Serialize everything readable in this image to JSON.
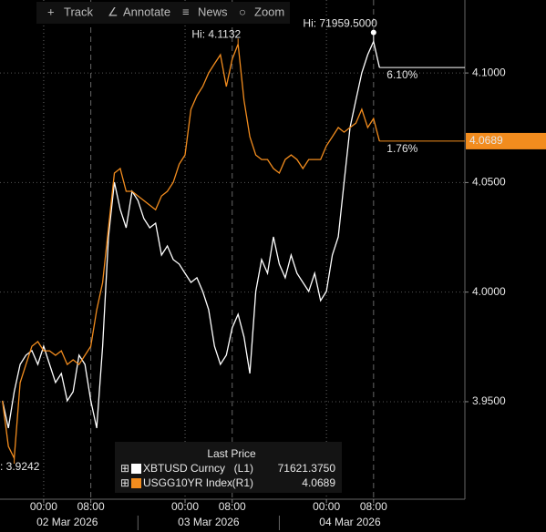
{
  "toolbar": [
    "Track",
    "Annotate",
    "News",
    "Zoom"
  ],
  "chart_data": {
    "type": "line",
    "x": [
      "2026-03-01T17:00",
      "2026-03-01T18:00",
      "2026-03-01T19:00",
      "2026-03-01T20:00",
      "2026-03-01T21:00",
      "2026-03-01T22:00",
      "2026-03-01T23:00",
      "2026-03-02T00:00",
      "2026-03-02T01:00",
      "2026-03-02T02:00",
      "2026-03-02T03:00",
      "2026-03-02T04:00",
      "2026-03-02T05:00",
      "2026-03-02T06:00",
      "2026-03-02T07:00",
      "2026-03-02T08:00",
      "2026-03-02T09:00",
      "2026-03-02T10:00",
      "2026-03-02T11:00",
      "2026-03-02T12:00",
      "2026-03-02T13:00",
      "2026-03-02T14:00",
      "2026-03-02T15:00",
      "2026-03-02T16:00",
      "2026-03-02T17:00",
      "2026-03-02T18:00",
      "2026-03-02T19:00",
      "2026-03-02T20:00",
      "2026-03-02T21:00",
      "2026-03-02T22:00",
      "2026-03-02T23:00",
      "2026-03-03T00:00",
      "2026-03-03T01:00",
      "2026-03-03T02:00",
      "2026-03-03T03:00",
      "2026-03-03T04:00",
      "2026-03-03T05:00",
      "2026-03-03T06:00",
      "2026-03-03T07:00",
      "2026-03-03T08:00",
      "2026-03-03T09:00",
      "2026-03-03T10:00",
      "2026-03-03T11:00",
      "2026-03-03T12:00",
      "2026-03-03T13:00",
      "2026-03-03T14:00",
      "2026-03-03T15:00",
      "2026-03-03T16:00",
      "2026-03-03T17:00",
      "2026-03-03T18:00",
      "2026-03-03T19:00",
      "2026-03-03T20:00",
      "2026-03-03T21:00",
      "2026-03-03T22:00",
      "2026-03-03T23:00",
      "2026-03-04T00:00",
      "2026-03-04T01:00",
      "2026-03-04T02:00",
      "2026-03-04T03:00",
      "2026-03-04T04:00",
      "2026-03-04T05:00",
      "2026-03-04T06:00",
      "2026-03-04T07:00",
      "2026-03-04T08:00",
      "2026-03-04T09:00"
    ],
    "xlim": [
      "2026-03-01T16:35",
      "2026-03-04T23:30"
    ],
    "xticks": [
      {
        "value": "2026-03-02T00:00",
        "label": "00:00"
      },
      {
        "value": "2026-03-02T08:00",
        "label": "08:00"
      },
      {
        "value": "2026-03-03T00:00",
        "label": "00:00"
      },
      {
        "value": "2026-03-03T08:00",
        "label": "08:00"
      },
      {
        "value": "2026-03-04T00:00",
        "label": "00:00"
      },
      {
        "value": "2026-03-04T08:00",
        "label": "08:00"
      }
    ],
    "date_labels": [
      "02 Mar 2026",
      "03 Mar 2026",
      "04 Mar 2026"
    ],
    "ylim": [
      66000,
      72500
    ],
    "y2lim": [
      3.9055,
      4.1333
    ],
    "y2ticks": [
      {
        "value": 3.95,
        "label": "3.9500"
      },
      {
        "value": 4.0,
        "label": "4.0000"
      },
      {
        "value": 4.05,
        "label": "4.0500"
      },
      {
        "value": 4.1,
        "label": "4.1000"
      }
    ],
    "legend_title": "Last Price",
    "series": [
      {
        "name": "XBTUSD Curncy",
        "axis_label": "(L1)",
        "last_label": "71621.3750",
        "color": "#ffffff",
        "hi_label": "Hi: 71959.5000",
        "change_label": "6.10%",
        "values": [
          67282,
          66926,
          67400,
          67756,
          67875,
          67934,
          67756,
          67993,
          67756,
          67519,
          67637,
          67282,
          67400,
          67875,
          67756,
          67282,
          66926,
          67993,
          69416,
          70128,
          69772,
          69535,
          70009,
          69891,
          69654,
          69535,
          69594,
          69179,
          69298,
          69120,
          69061,
          68942,
          68823,
          68883,
          68705,
          68468,
          67993,
          67756,
          67875,
          68230,
          68408,
          68112,
          67637,
          68705,
          69120,
          68942,
          69416,
          69061,
          68883,
          69179,
          68942,
          68823,
          68705,
          68942,
          68586,
          68705,
          69179,
          69416,
          70128,
          70840,
          71195,
          71551,
          71788,
          71959.5,
          71621.375
        ]
      },
      {
        "name": "USGG10YR Index",
        "axis_label": "(R1)",
        "last_label": "4.0689",
        "color": "#f28c1e",
        "axis": "y2",
        "hi_label": "Hi: 4.1132",
        "lo_label": ": 3.9242",
        "change_label": "1.76%",
        "values": [
          3.9504,
          3.9296,
          3.9242,
          3.9587,
          3.967,
          3.9753,
          3.9774,
          3.9732,
          3.9732,
          3.9712,
          3.9732,
          3.967,
          3.9691,
          3.967,
          3.9712,
          3.9753,
          3.9919,
          4.0044,
          4.0293,
          4.0543,
          4.0564,
          4.046,
          4.046,
          4.0439,
          4.0418,
          4.0397,
          4.0376,
          4.0439,
          4.046,
          4.0501,
          4.0584,
          4.0626,
          4.0834,
          4.0896,
          4.0938,
          4.1,
          4.1042,
          4.1083,
          4.0938,
          4.1062,
          4.1132,
          4.0875,
          4.0709,
          4.0626,
          4.0605,
          4.0605,
          4.0564,
          4.0543,
          4.0605,
          4.0626,
          4.0605,
          4.0564,
          4.0605,
          4.0605,
          4.0605,
          4.0668,
          4.0709,
          4.0751,
          4.073,
          4.0751,
          4.0771,
          4.0834,
          4.0751,
          4.0792,
          4.0689
        ]
      }
    ]
  }
}
